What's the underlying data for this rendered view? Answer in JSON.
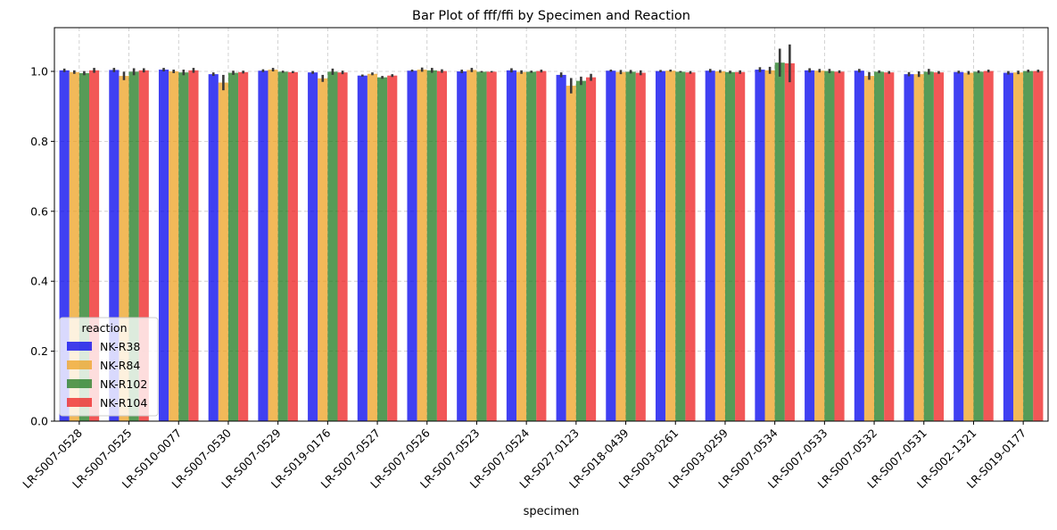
{
  "chart_data": {
    "type": "bar",
    "title": "Bar Plot of fff/ffi by Specimen and Reaction",
    "xlabel": "specimen",
    "ylabel": "",
    "ylim": [
      0,
      1.125
    ],
    "yticks": [
      0.0,
      0.2,
      0.4,
      0.6,
      0.8,
      1.0
    ],
    "ytick_labels": [
      "0.0",
      "0.2",
      "0.4",
      "0.6",
      "0.8",
      "1.0"
    ],
    "grid": true,
    "legend": {
      "title": "reaction",
      "placement": "lower-left"
    },
    "categories": [
      "LR-S007-0528",
      "LR-S007-0525",
      "LR-S010-0077",
      "LR-S007-0530",
      "LR-S007-0529",
      "LR-S019-0176",
      "LR-S007-0527",
      "LR-S007-0526",
      "LR-S007-0523",
      "LR-S007-0524",
      "LR-S027-0123",
      "LR-S018-0439",
      "LR-S003-0261",
      "LR-S003-0259",
      "LR-S007-0534",
      "LR-S007-0533",
      "LR-S007-0532",
      "LR-S007-0531",
      "LR-S002-1321",
      "LR-S019-0177"
    ],
    "series": [
      {
        "name": "NK-R38",
        "color": "#0000ee",
        "values": [
          1.003,
          1.004,
          1.005,
          0.992,
          1.002,
          0.997,
          0.988,
          1.002,
          1.0,
          1.003,
          0.99,
          1.002,
          1.001,
          1.002,
          1.005,
          1.003,
          1.002,
          0.992,
          0.998,
          0.996
        ],
        "err": [
          0.005,
          0.006,
          0.005,
          0.005,
          0.004,
          0.004,
          0.003,
          0.003,
          0.005,
          0.006,
          0.007,
          0.003,
          0.003,
          0.005,
          0.007,
          0.006,
          0.005,
          0.006,
          0.004,
          0.005
        ]
      },
      {
        "name": "NK-R84",
        "color": "#eea222",
        "values": [
          0.998,
          0.987,
          1.0,
          0.968,
          1.005,
          0.98,
          0.993,
          1.005,
          1.004,
          0.998,
          0.959,
          0.998,
          1.002,
          1.0,
          1.003,
          1.002,
          0.987,
          0.992,
          0.996,
          0.997
        ],
        "err": [
          0.005,
          0.012,
          0.005,
          0.022,
          0.005,
          0.01,
          0.004,
          0.006,
          0.006,
          0.005,
          0.022,
          0.006,
          0.003,
          0.004,
          0.01,
          0.005,
          0.011,
          0.008,
          0.005,
          0.005
        ]
      },
      {
        "name": "NK-R102",
        "color": "#1f7a1f",
        "values": [
          0.995,
          0.999,
          0.997,
          0.996,
          0.999,
          0.999,
          0.983,
          1.003,
          0.999,
          0.999,
          0.973,
          0.999,
          0.999,
          0.998,
          1.025,
          1.001,
          0.999,
          0.999,
          0.999,
          1.001
        ],
        "err": [
          0.006,
          0.01,
          0.008,
          0.006,
          0.003,
          0.009,
          0.004,
          0.007,
          0.002,
          0.003,
          0.012,
          0.005,
          0.002,
          0.004,
          0.04,
          0.006,
          0.004,
          0.008,
          0.004,
          0.004
        ]
      },
      {
        "name": "NK-R104",
        "color": "#ee1f1f",
        "values": [
          1.003,
          1.003,
          1.003,
          0.998,
          0.998,
          0.997,
          0.988,
          1.001,
          0.999,
          1.001,
          0.983,
          0.996,
          0.997,
          0.998,
          1.023,
          0.999,
          0.997,
          0.997,
          1.001,
          1.001
        ],
        "err": [
          0.007,
          0.006,
          0.007,
          0.004,
          0.003,
          0.005,
          0.004,
          0.005,
          0.002,
          0.004,
          0.01,
          0.007,
          0.004,
          0.005,
          0.054,
          0.004,
          0.004,
          0.004,
          0.004,
          0.004
        ]
      }
    ]
  }
}
